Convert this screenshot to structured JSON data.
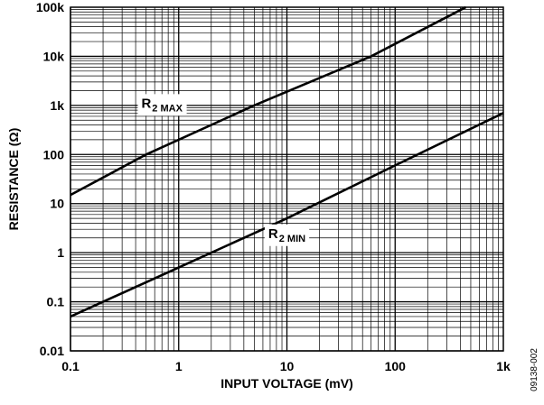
{
  "chart_data": {
    "type": "line",
    "xlabel": "INPUT VOLTAGE (mV)",
    "ylabel": "RESISTANCE (Ω)",
    "x_scale": "log",
    "y_scale": "log",
    "xlim": [
      0.1,
      1000
    ],
    "ylim": [
      0.01,
      100000
    ],
    "x_ticks": [
      {
        "value": 0.1,
        "label": "0.1"
      },
      {
        "value": 1,
        "label": "1"
      },
      {
        "value": 10,
        "label": "10"
      },
      {
        "value": 100,
        "label": "100"
      },
      {
        "value": 1000,
        "label": "1k"
      }
    ],
    "y_ticks": [
      {
        "value": 0.01,
        "label": "0.01"
      },
      {
        "value": 0.1,
        "label": "0.1"
      },
      {
        "value": 1,
        "label": "1"
      },
      {
        "value": 10,
        "label": "10"
      },
      {
        "value": 100,
        "label": "100"
      },
      {
        "value": 1000,
        "label": "1k"
      },
      {
        "value": 10000,
        "label": "10k"
      },
      {
        "value": 100000,
        "label": "100k"
      }
    ],
    "grid": true,
    "series": [
      {
        "name": "R2 MAX",
        "label_main": "R",
        "label_sub": "2 MAX",
        "points": [
          [
            0.1,
            15
          ],
          [
            0.5,
            100
          ],
          [
            5,
            1000
          ],
          [
            60,
            10000
          ],
          [
            450,
            100000
          ]
        ],
        "label_at": [
          0.7,
          900
        ]
      },
      {
        "name": "R2 MIN",
        "label_main": "R",
        "label_sub": "2 MIN",
        "points": [
          [
            0.1,
            0.05
          ],
          [
            1,
            0.5
          ],
          [
            10,
            5
          ],
          [
            100,
            60
          ],
          [
            1000,
            700
          ]
        ],
        "label_at": [
          10,
          2
        ]
      }
    ],
    "line_color": "#000000",
    "grid_color": "#000000"
  },
  "figure_id": "09138-002"
}
